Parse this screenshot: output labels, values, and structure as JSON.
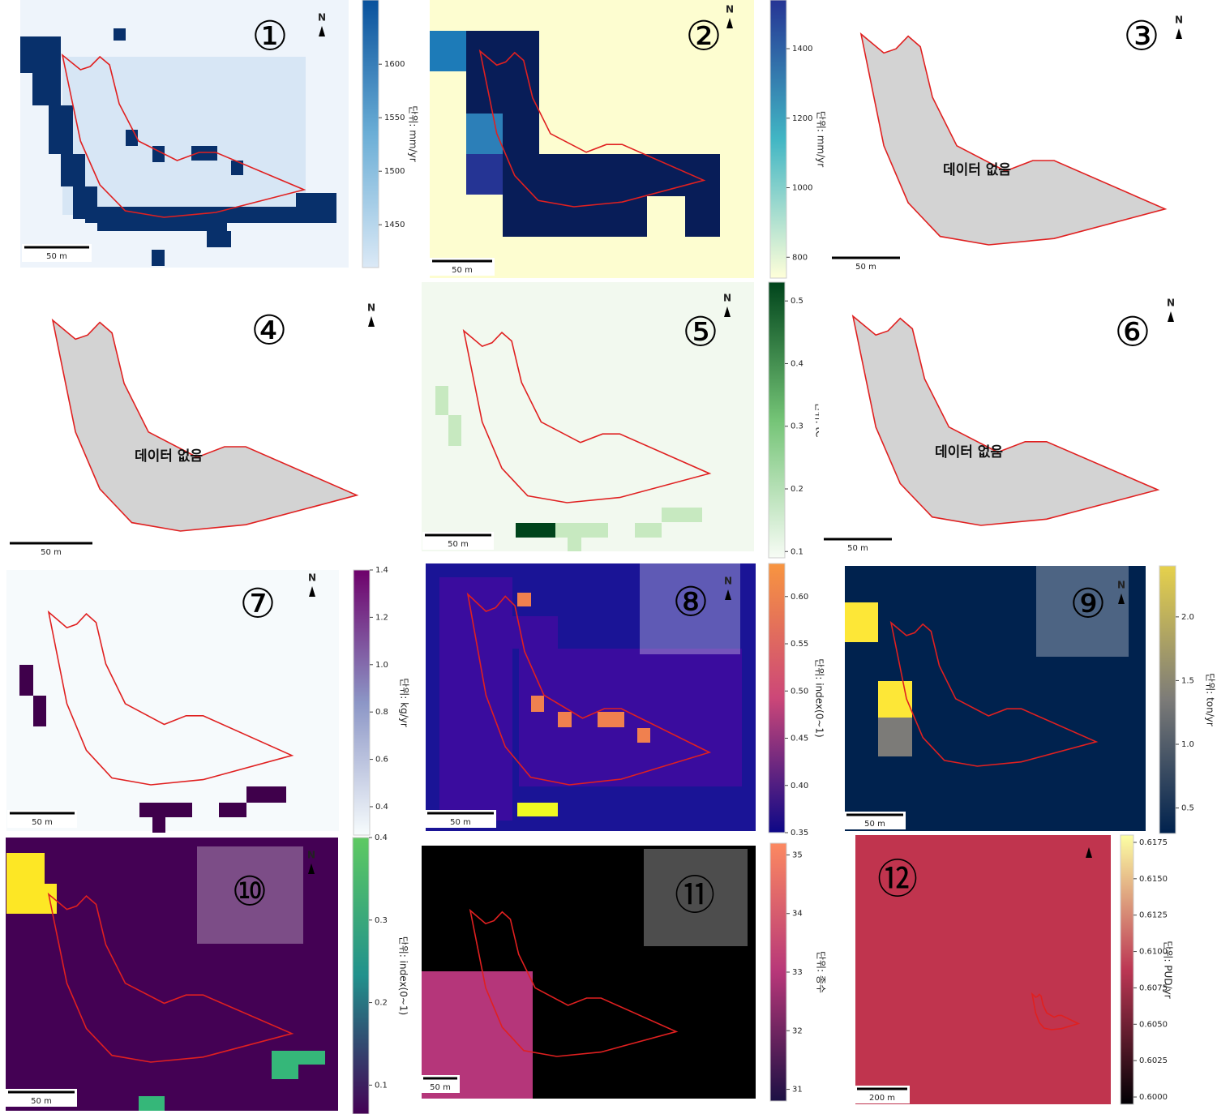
{
  "panels": [
    {
      "label": "①",
      "north": "N",
      "scale": "50 m",
      "colorbar": {
        "unit": "단위: mm/yr",
        "range": [
          1410,
          1660
        ],
        "ticks": [
          1450,
          1500,
          1550,
          1600
        ]
      }
    },
    {
      "label": "②",
      "north": "N",
      "scale": "50 m",
      "colorbar": {
        "unit": "단위: mm/yr",
        "range": [
          740,
          1540
        ],
        "ticks": [
          800,
          1000,
          1200,
          1400
        ]
      }
    },
    {
      "label": "③",
      "north": "N",
      "scale": "50 m",
      "note": "데이터 없음"
    },
    {
      "label": "④",
      "north": "N",
      "scale": "50 m",
      "note": "데이터 없음"
    },
    {
      "label": "⑤",
      "north": "N",
      "scale": "50 m",
      "colorbar": {
        "unit": "단위: tC",
        "range": [
          0.09,
          0.53
        ],
        "ticks": [
          0.1,
          0.2,
          0.3,
          0.4,
          0.5
        ]
      }
    },
    {
      "label": "⑥",
      "north": "N",
      "scale": "50 m",
      "note": "데이터 없음"
    },
    {
      "label": "⑦",
      "north": "N",
      "scale": "50 m",
      "colorbar": {
        "unit": "단위: kg/yr",
        "range": [
          0.28,
          1.4
        ],
        "ticks": [
          0.4,
          0.6,
          0.8,
          {
            "value": 1,
            "label": "1.0"
          },
          1.2,
          1.4
        ]
      }
    },
    {
      "label": "⑧",
      "north": "N",
      "scale": "50 m",
      "colorbar": {
        "unit": "단위: index(0~1)",
        "range": [
          0.35,
          0.635
        ],
        "ticks": [
          0.35,
          {
            "value": 0.4,
            "label": "0.40"
          },
          0.45,
          {
            "value": 0.5,
            "label": "0.50"
          },
          0.55,
          {
            "value": 0.6,
            "label": "0.60"
          }
        ]
      }
    },
    {
      "label": "⑨",
      "north": "N",
      "scale": "50 m",
      "colorbar": {
        "unit": "단위: ton/yr",
        "range": [
          0.3,
          2.4
        ],
        "ticks": [
          0.5,
          {
            "value": 1,
            "label": "1.0"
          },
          1.5,
          {
            "value": 2,
            "label": "2.0"
          }
        ]
      }
    },
    {
      "label": "⑩",
      "north": "N",
      "scale": "50 m",
      "colorbar": {
        "unit": "단위: index(0~1)",
        "range": [
          0.065,
          0.4
        ],
        "ticks": [
          0.1,
          0.2,
          0.3,
          0.4
        ]
      }
    },
    {
      "label": "⑪",
      "scale": "50 m",
      "colorbar": {
        "unit": "단위: 종수",
        "range": [
          30.8,
          35.2
        ],
        "ticks": [
          31,
          32,
          33,
          34,
          35
        ]
      }
    },
    {
      "label": "⑫",
      "scale": "200 m",
      "colorbar": {
        "unit": "단위: PUD/yr",
        "range": [
          0.5995,
          0.618
        ],
        "ticks": [
          {
            "value": 0.6,
            "label": "0.6000"
          },
          0.6025,
          {
            "value": 0.605,
            "label": "0.6050"
          },
          0.6075,
          {
            "value": 0.61,
            "label": "0.6100"
          },
          0.6125,
          {
            "value": 0.615,
            "label": "0.6150"
          },
          0.6175
        ]
      }
    }
  ]
}
